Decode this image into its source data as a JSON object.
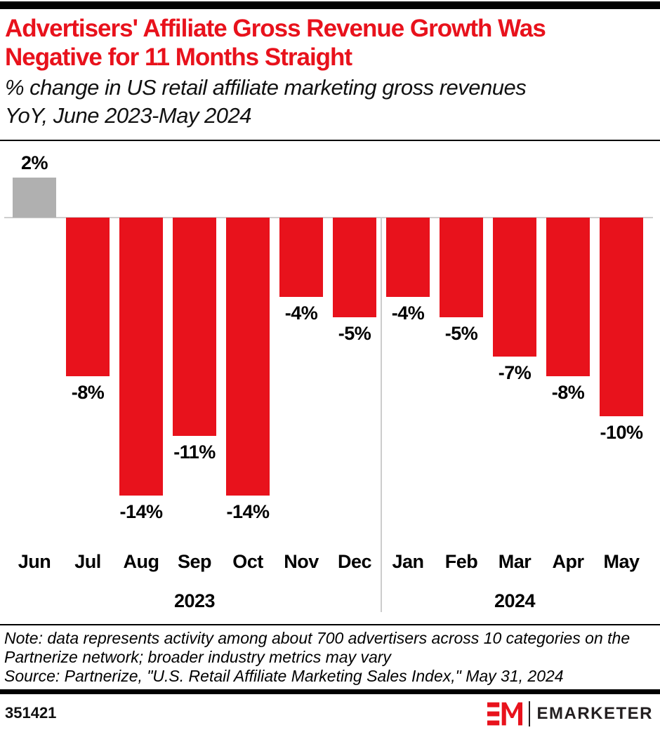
{
  "header": {
    "title_line1": "Advertisers' Affiliate Gross Revenue Growth Was",
    "title_line2": "Negative for 11 Months Straight",
    "subtitle_line1": "% change in US retail affiliate marketing gross revenues",
    "subtitle_line2": "YoY, June 2023-May 2024"
  },
  "chart_data": {
    "type": "bar",
    "title": "Advertisers' Affiliate Gross Revenue Growth Was Negative for 11 Months Straight",
    "subtitle": "% change in US retail affiliate marketing gross revenues YoY, June 2023-May 2024",
    "categories": [
      "Jun",
      "Jul",
      "Aug",
      "Sep",
      "Oct",
      "Nov",
      "Dec",
      "Jan",
      "Feb",
      "Mar",
      "Apr",
      "May"
    ],
    "values": [
      2,
      -8,
      -14,
      -11,
      -14,
      -4,
      -5,
      -4,
      -5,
      -7,
      -8,
      -10
    ],
    "value_labels": [
      "2%",
      "-8%",
      "-14%",
      "-11%",
      "-14%",
      "-4%",
      "-5%",
      "-4%",
      "-5%",
      "-7%",
      "-8%",
      "-10%"
    ],
    "unit": "%",
    "year_groups": [
      {
        "label": "2023",
        "start_index": 0,
        "end_index": 6
      },
      {
        "label": "2024",
        "start_index": 7,
        "end_index": 11
      }
    ],
    "positive_color": "#b0b0b0",
    "negative_color": "#e8121c",
    "ylim": [
      -15,
      3
    ],
    "layout_hints": {
      "grid": false,
      "zero_line": true,
      "value_axis_hidden": true,
      "legend": "none"
    }
  },
  "footer": {
    "note": "Note: data represents activity among about 700 advertisers across 10 categories on the Partnerize network; broader industry metrics may vary",
    "source": "Source: Partnerize, \"U.S. Retail Affiliate Marketing Sales Index,\" May 31, 2024",
    "chart_id": "351421",
    "brand": {
      "monogram": "EM",
      "name": "EMARKETER",
      "red": "#e8121c",
      "dark": "#231f20"
    }
  }
}
